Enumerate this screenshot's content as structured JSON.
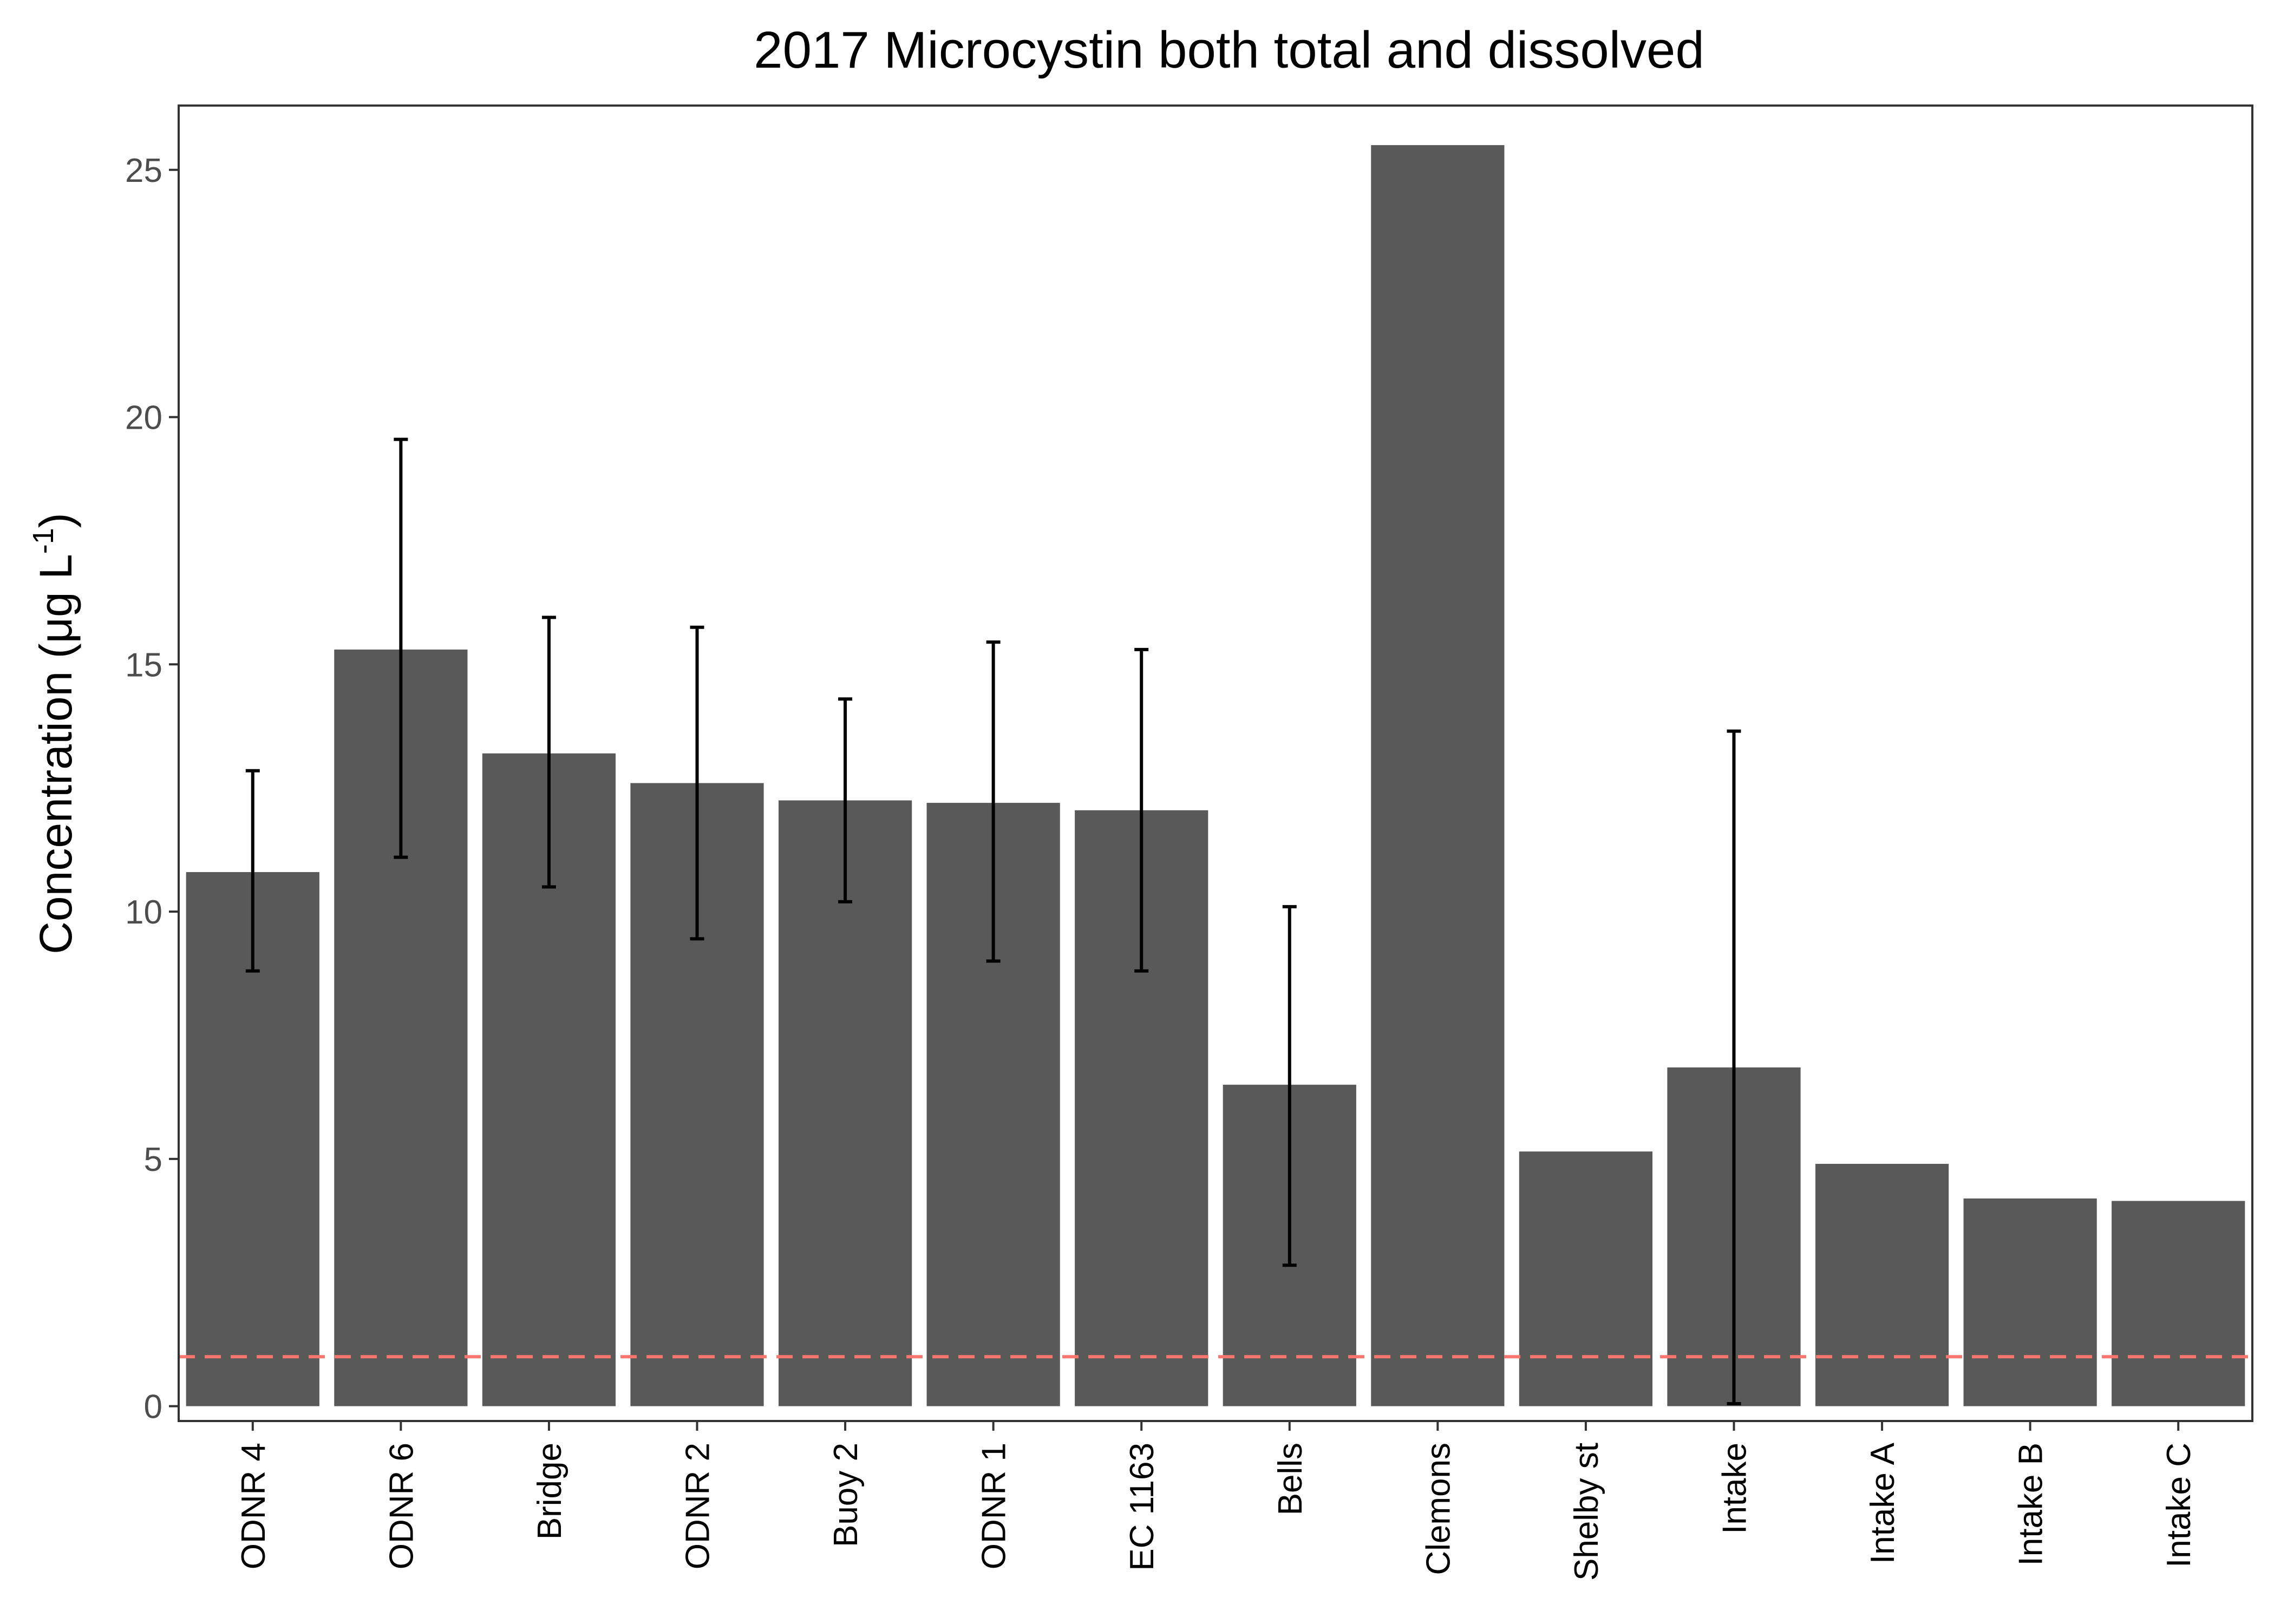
{
  "chart_data": {
    "type": "bar",
    "title": "2017 Microcystin both total and dissolved",
    "ylabel_main": "Concentration (μg L",
    "ylabel_sup": "-1",
    "ylabel_close": ")",
    "xlabel": "",
    "ylim": [
      -0.3,
      26.3
    ],
    "yticks": [
      0,
      5,
      10,
      15,
      20,
      25
    ],
    "grid": false,
    "legend": "none",
    "categories": [
      "ODNR 4",
      "ODNR 6",
      "Bridge",
      "ODNR 2",
      "Buoy 2",
      "ODNR 1",
      "EC 1163",
      "Bells",
      "Clemons",
      "Shelby st",
      "Intake",
      "Intake A",
      "Intake B",
      "Intake C"
    ],
    "values": [
      10.8,
      15.3,
      13.2,
      12.6,
      12.25,
      12.2,
      12.05,
      6.5,
      25.5,
      5.15,
      6.85,
      4.9,
      4.2,
      4.15
    ],
    "error_low": [
      8.8,
      11.1,
      10.5,
      9.45,
      10.2,
      9.0,
      8.8,
      2.85,
      null,
      null,
      0.05,
      null,
      null,
      null
    ],
    "error_high": [
      12.85,
      19.55,
      15.95,
      15.75,
      14.3,
      15.45,
      15.3,
      10.1,
      null,
      null,
      13.65,
      null,
      null,
      null
    ],
    "reference_line": 1.0,
    "colors": {
      "bar": "#595959",
      "errorbar": "#000000",
      "reference_line": "#f8766d",
      "axis": "#333333"
    }
  }
}
